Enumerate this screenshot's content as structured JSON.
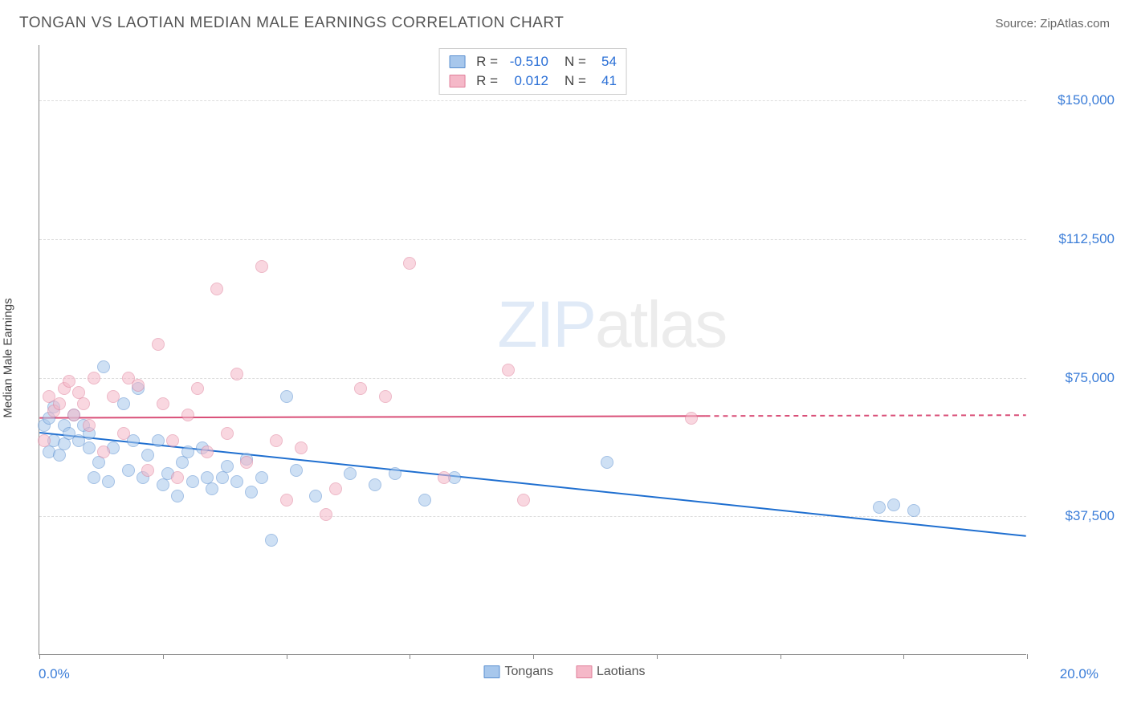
{
  "title": "TONGAN VS LAOTIAN MEDIAN MALE EARNINGS CORRELATION CHART",
  "source_label": "Source: ZipAtlas.com",
  "y_axis_title": "Median Male Earnings",
  "watermark": {
    "part1": "ZIP",
    "part2": "atlas"
  },
  "chart": {
    "type": "scatter",
    "xlim": [
      0,
      20
    ],
    "ylim": [
      0,
      165000
    ],
    "x_ticks": [
      0,
      2.5,
      5,
      7.5,
      10,
      12.5,
      15,
      17.5,
      20
    ],
    "x_tick_labels_shown": {
      "min": "0.0%",
      "max": "20.0%"
    },
    "y_gridlines": [
      37500,
      75000,
      112500,
      150000
    ],
    "y_tick_labels": [
      "$37,500",
      "$75,000",
      "$112,500",
      "$150,000"
    ],
    "background_color": "#ffffff",
    "grid_color": "#dddddd",
    "grid_dash": "4,4",
    "axis_color": "#888888",
    "tick_label_color": "#3b7dd8",
    "tick_label_fontsize": 17,
    "point_radius": 8,
    "point_opacity": 0.55,
    "series": [
      {
        "name": "Tongans",
        "fill_color": "#a7c7ec",
        "stroke_color": "#5a8fd0",
        "line_color": "#1f6fd0",
        "line_width": 2,
        "r_value": "-0.510",
        "n_value": "54",
        "trend": {
          "x1": 0,
          "y1": 60000,
          "x2": 20,
          "y2": 32000,
          "extrapolate_from_x": null
        },
        "points": [
          [
            0.1,
            62000
          ],
          [
            0.2,
            55000
          ],
          [
            0.2,
            64000
          ],
          [
            0.3,
            58000
          ],
          [
            0.3,
            67000
          ],
          [
            0.4,
            54000
          ],
          [
            0.5,
            62000
          ],
          [
            0.5,
            57000
          ],
          [
            0.6,
            60000
          ],
          [
            0.7,
            65000
          ],
          [
            0.8,
            58000
          ],
          [
            0.9,
            62000
          ],
          [
            1.0,
            56000
          ],
          [
            1.0,
            60000
          ],
          [
            1.1,
            48000
          ],
          [
            1.2,
            52000
          ],
          [
            1.3,
            78000
          ],
          [
            1.4,
            47000
          ],
          [
            1.5,
            56000
          ],
          [
            1.7,
            68000
          ],
          [
            1.8,
            50000
          ],
          [
            1.9,
            58000
          ],
          [
            2.0,
            72000
          ],
          [
            2.1,
            48000
          ],
          [
            2.2,
            54000
          ],
          [
            2.4,
            58000
          ],
          [
            2.5,
            46000
          ],
          [
            2.6,
            49000
          ],
          [
            2.8,
            43000
          ],
          [
            2.9,
            52000
          ],
          [
            3.0,
            55000
          ],
          [
            3.1,
            47000
          ],
          [
            3.3,
            56000
          ],
          [
            3.4,
            48000
          ],
          [
            3.5,
            45000
          ],
          [
            3.7,
            48000
          ],
          [
            3.8,
            51000
          ],
          [
            4.0,
            47000
          ],
          [
            4.2,
            53000
          ],
          [
            4.3,
            44000
          ],
          [
            4.5,
            48000
          ],
          [
            4.7,
            31000
          ],
          [
            5.0,
            70000
          ],
          [
            5.2,
            50000
          ],
          [
            5.6,
            43000
          ],
          [
            6.3,
            49000
          ],
          [
            6.8,
            46000
          ],
          [
            7.2,
            49000
          ],
          [
            7.8,
            42000
          ],
          [
            8.4,
            48000
          ],
          [
            11.5,
            52000
          ],
          [
            17.0,
            40000
          ],
          [
            17.3,
            40500
          ],
          [
            17.7,
            39000
          ]
        ]
      },
      {
        "name": "Laotians",
        "fill_color": "#f5b8c8",
        "stroke_color": "#e07f9a",
        "line_color": "#d94f78",
        "line_width": 2,
        "r_value": "0.012",
        "n_value": "41",
        "trend": {
          "x1": 0,
          "y1": 64000,
          "x2": 13.5,
          "y2": 64500,
          "extrapolate_from_x": 13.5
        },
        "points": [
          [
            0.1,
            58000
          ],
          [
            0.2,
            70000
          ],
          [
            0.3,
            66000
          ],
          [
            0.4,
            68000
          ],
          [
            0.5,
            72000
          ],
          [
            0.6,
            74000
          ],
          [
            0.7,
            65000
          ],
          [
            0.8,
            71000
          ],
          [
            0.9,
            68000
          ],
          [
            1.0,
            62000
          ],
          [
            1.1,
            75000
          ],
          [
            1.3,
            55000
          ],
          [
            1.5,
            70000
          ],
          [
            1.7,
            60000
          ],
          [
            1.8,
            75000
          ],
          [
            2.0,
            73000
          ],
          [
            2.2,
            50000
          ],
          [
            2.4,
            84000
          ],
          [
            2.5,
            68000
          ],
          [
            2.7,
            58000
          ],
          [
            2.8,
            48000
          ],
          [
            3.0,
            65000
          ],
          [
            3.2,
            72000
          ],
          [
            3.4,
            55000
          ],
          [
            3.6,
            99000
          ],
          [
            3.8,
            60000
          ],
          [
            4.0,
            76000
          ],
          [
            4.2,
            52000
          ],
          [
            4.5,
            105000
          ],
          [
            4.8,
            58000
          ],
          [
            5.0,
            42000
          ],
          [
            5.3,
            56000
          ],
          [
            5.8,
            38000
          ],
          [
            6.0,
            45000
          ],
          [
            6.5,
            72000
          ],
          [
            7.0,
            70000
          ],
          [
            7.5,
            106000
          ],
          [
            8.2,
            48000
          ],
          [
            9.5,
            77000
          ],
          [
            9.8,
            42000
          ],
          [
            13.2,
            64000
          ]
        ]
      }
    ],
    "legend_bottom": [
      {
        "label": "Tongans",
        "fill": "#a7c7ec",
        "stroke": "#5a8fd0"
      },
      {
        "label": "Laotians",
        "fill": "#f5b8c8",
        "stroke": "#e07f9a"
      }
    ],
    "stats_box": {
      "border_color": "#cccccc",
      "label_color": "#444444",
      "value_color": "#2a6fd6",
      "fontsize": 17
    }
  }
}
